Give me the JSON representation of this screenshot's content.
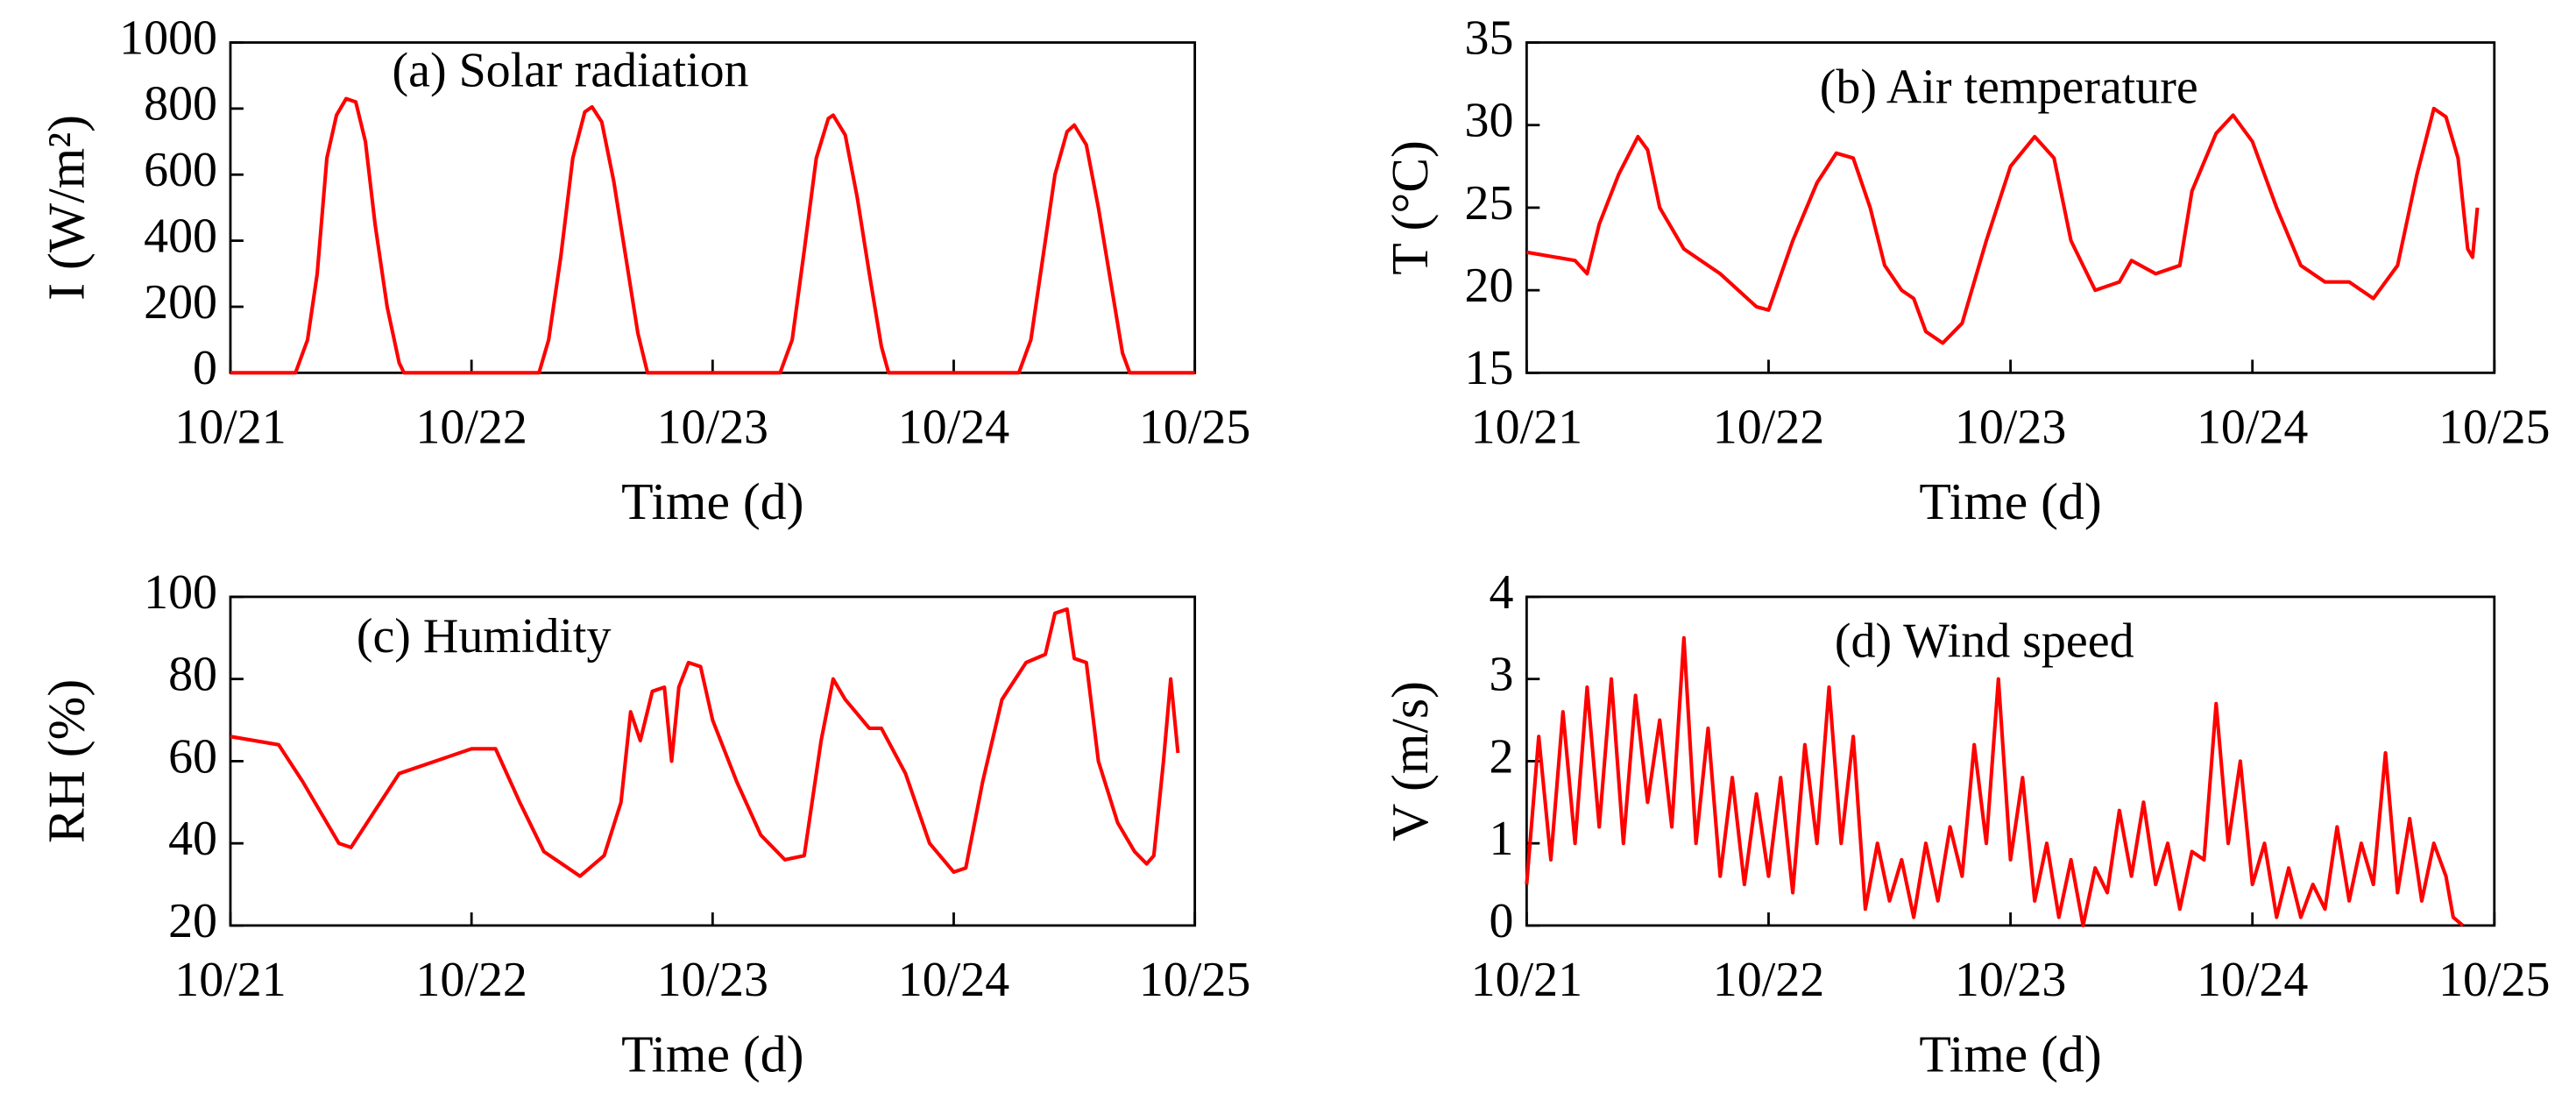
{
  "chart_data": [
    {
      "type": "line",
      "title": "(a) Solar radiation",
      "xlabel": "Time (d)",
      "ylabel": "I (W/m²)",
      "color": "#ff0000",
      "xlim": [
        0,
        4
      ],
      "xticks": [
        {
          "value": 0,
          "label": "10/21"
        },
        {
          "value": 1,
          "label": "10/22"
        },
        {
          "value": 2,
          "label": "10/23"
        },
        {
          "value": 3,
          "label": "10/24"
        },
        {
          "value": 4,
          "label": "10/25"
        }
      ],
      "ylim": [
        0,
        1000
      ],
      "yticks": [
        0,
        200,
        400,
        600,
        800,
        1000
      ],
      "x": [
        0,
        0.27,
        0.32,
        0.36,
        0.4,
        0.44,
        0.48,
        0.52,
        0.56,
        0.6,
        0.65,
        0.7,
        0.72,
        1.28,
        1.32,
        1.37,
        1.42,
        1.47,
        1.5,
        1.54,
        1.59,
        1.64,
        1.69,
        1.73,
        2.28,
        2.33,
        2.38,
        2.43,
        2.48,
        2.5,
        2.55,
        2.6,
        2.65,
        2.7,
        2.73,
        3.27,
        3.32,
        3.37,
        3.42,
        3.47,
        3.5,
        3.55,
        3.6,
        3.65,
        3.7,
        3.73,
        4
      ],
      "values": [
        0,
        0,
        100,
        300,
        650,
        780,
        830,
        820,
        700,
        450,
        200,
        30,
        0,
        0,
        100,
        350,
        650,
        790,
        805,
        760,
        580,
        350,
        120,
        0,
        0,
        100,
        370,
        650,
        770,
        780,
        720,
        530,
        300,
        80,
        0,
        0,
        100,
        350,
        600,
        730,
        750,
        690,
        500,
        280,
        60,
        0,
        0
      ]
    },
    {
      "type": "line",
      "title": "(b) Air temperature",
      "xlabel": "Time (d)",
      "ylabel": "T (°C)",
      "color": "#ff0000",
      "xlim": [
        0,
        4
      ],
      "xticks": [
        {
          "value": 0,
          "label": "10/21"
        },
        {
          "value": 1,
          "label": "10/22"
        },
        {
          "value": 2,
          "label": "10/23"
        },
        {
          "value": 3,
          "label": "10/24"
        },
        {
          "value": 4,
          "label": "10/25"
        }
      ],
      "ylim": [
        15,
        35
      ],
      "yticks": [
        15,
        20,
        25,
        30,
        35
      ],
      "x": [
        0,
        0.2,
        0.25,
        0.3,
        0.38,
        0.46,
        0.5,
        0.55,
        0.65,
        0.8,
        0.95,
        1.0,
        1.1,
        1.2,
        1.28,
        1.35,
        1.42,
        1.48,
        1.55,
        1.6,
        1.65,
        1.72,
        1.8,
        1.9,
        2.0,
        2.1,
        2.18,
        2.25,
        2.35,
        2.45,
        2.5,
        2.6,
        2.7,
        2.75,
        2.85,
        2.92,
        3.0,
        3.1,
        3.2,
        3.3,
        3.4,
        3.5,
        3.6,
        3.68,
        3.75,
        3.8,
        3.85,
        3.89,
        3.91,
        3.93
      ],
      "values": [
        22.3,
        21.8,
        21,
        24,
        27,
        29.3,
        28.5,
        25,
        22.5,
        21,
        19,
        18.8,
        23,
        26.5,
        28.3,
        28,
        25,
        21.5,
        20,
        19.5,
        17.5,
        16.8,
        18,
        23,
        27.5,
        29.3,
        28,
        23,
        20,
        20.5,
        21.8,
        21,
        21.5,
        26,
        29.5,
        30.6,
        29,
        25,
        21.5,
        20.5,
        20.5,
        19.5,
        21.5,
        27,
        31,
        30.5,
        28,
        22.5,
        22,
        25
      ]
    },
    {
      "type": "line",
      "title": "(c) Humidity",
      "xlabel": "Time (d)",
      "ylabel": "RH (%)",
      "color": "#ff0000",
      "xlim": [
        0,
        4
      ],
      "xticks": [
        {
          "value": 0,
          "label": "10/21"
        },
        {
          "value": 1,
          "label": "10/22"
        },
        {
          "value": 2,
          "label": "10/23"
        },
        {
          "value": 3,
          "label": "10/24"
        },
        {
          "value": 4,
          "label": "10/25"
        }
      ],
      "ylim": [
        20,
        100
      ],
      "yticks": [
        20,
        40,
        60,
        80,
        100
      ],
      "x": [
        0,
        0.2,
        0.3,
        0.45,
        0.5,
        0.6,
        0.7,
        0.85,
        1.0,
        1.1,
        1.2,
        1.3,
        1.45,
        1.55,
        1.62,
        1.66,
        1.7,
        1.75,
        1.8,
        1.83,
        1.86,
        1.9,
        1.95,
        2.0,
        2.1,
        2.2,
        2.3,
        2.38,
        2.45,
        2.5,
        2.55,
        2.65,
        2.7,
        2.8,
        2.9,
        3.0,
        3.05,
        3.12,
        3.2,
        3.3,
        3.38,
        3.42,
        3.47,
        3.5,
        3.55,
        3.6,
        3.68,
        3.75,
        3.8,
        3.83,
        3.87,
        3.9,
        3.93
      ],
      "values": [
        66,
        64,
        55,
        40,
        39,
        48,
        57,
        60,
        63,
        63,
        50,
        38,
        32,
        37,
        50,
        72,
        65,
        77,
        78,
        60,
        78,
        84,
        83,
        70,
        55,
        42,
        36,
        37,
        65,
        80,
        75,
        68,
        68,
        57,
        40,
        33,
        34,
        55,
        75,
        84,
        86,
        96,
        97,
        85,
        84,
        60,
        45,
        38,
        35,
        37,
        60,
        80,
        62
      ]
    },
    {
      "type": "line",
      "title": "(d) Wind speed",
      "xlabel": "Time (d)",
      "ylabel": "V (m/s)",
      "color": "#ff0000",
      "xlim": [
        0,
        4
      ],
      "xticks": [
        {
          "value": 0,
          "label": "10/21"
        },
        {
          "value": 1,
          "label": "10/22"
        },
        {
          "value": 2,
          "label": "10/23"
        },
        {
          "value": 3,
          "label": "10/24"
        },
        {
          "value": 4,
          "label": "10/25"
        }
      ],
      "ylim": [
        0,
        4
      ],
      "yticks": [
        0,
        1,
        2,
        3,
        4
      ],
      "x": [
        0,
        0.05,
        0.1,
        0.15,
        0.2,
        0.25,
        0.3,
        0.35,
        0.4,
        0.45,
        0.5,
        0.55,
        0.6,
        0.65,
        0.7,
        0.75,
        0.8,
        0.85,
        0.9,
        0.95,
        1.0,
        1.05,
        1.1,
        1.15,
        1.2,
        1.25,
        1.3,
        1.35,
        1.4,
        1.45,
        1.5,
        1.55,
        1.6,
        1.65,
        1.7,
        1.75,
        1.8,
        1.85,
        1.9,
        1.95,
        2.0,
        2.05,
        2.1,
        2.15,
        2.2,
        2.25,
        2.3,
        2.35,
        2.4,
        2.45,
        2.5,
        2.55,
        2.6,
        2.65,
        2.7,
        2.75,
        2.8,
        2.85,
        2.9,
        2.95,
        3.0,
        3.05,
        3.1,
        3.15,
        3.2,
        3.25,
        3.3,
        3.35,
        3.4,
        3.45,
        3.5,
        3.55,
        3.6,
        3.65,
        3.7,
        3.75,
        3.8,
        3.83,
        3.87
      ],
      "values": [
        0.5,
        2.3,
        0.8,
        2.6,
        1.0,
        2.9,
        1.2,
        3.0,
        1.0,
        2.8,
        1.5,
        2.5,
        1.2,
        3.5,
        1.0,
        2.4,
        0.6,
        1.8,
        0.5,
        1.6,
        0.6,
        1.8,
        0.4,
        2.2,
        1.0,
        2.9,
        1.0,
        2.3,
        0.2,
        1.0,
        0.3,
        0.8,
        0.1,
        1.0,
        0.3,
        1.2,
        0.6,
        2.2,
        1.0,
        3.0,
        0.8,
        1.8,
        0.3,
        1.0,
        0.1,
        0.8,
        0.0,
        0.7,
        0.4,
        1.4,
        0.6,
        1.5,
        0.5,
        1.0,
        0.2,
        0.9,
        0.8,
        2.7,
        1.0,
        2.0,
        0.5,
        1.0,
        0.1,
        0.7,
        0.1,
        0.5,
        0.2,
        1.2,
        0.3,
        1.0,
        0.5,
        2.1,
        0.4,
        1.3,
        0.3,
        1.0,
        0.6,
        0.1,
        0.0
      ]
    }
  ]
}
